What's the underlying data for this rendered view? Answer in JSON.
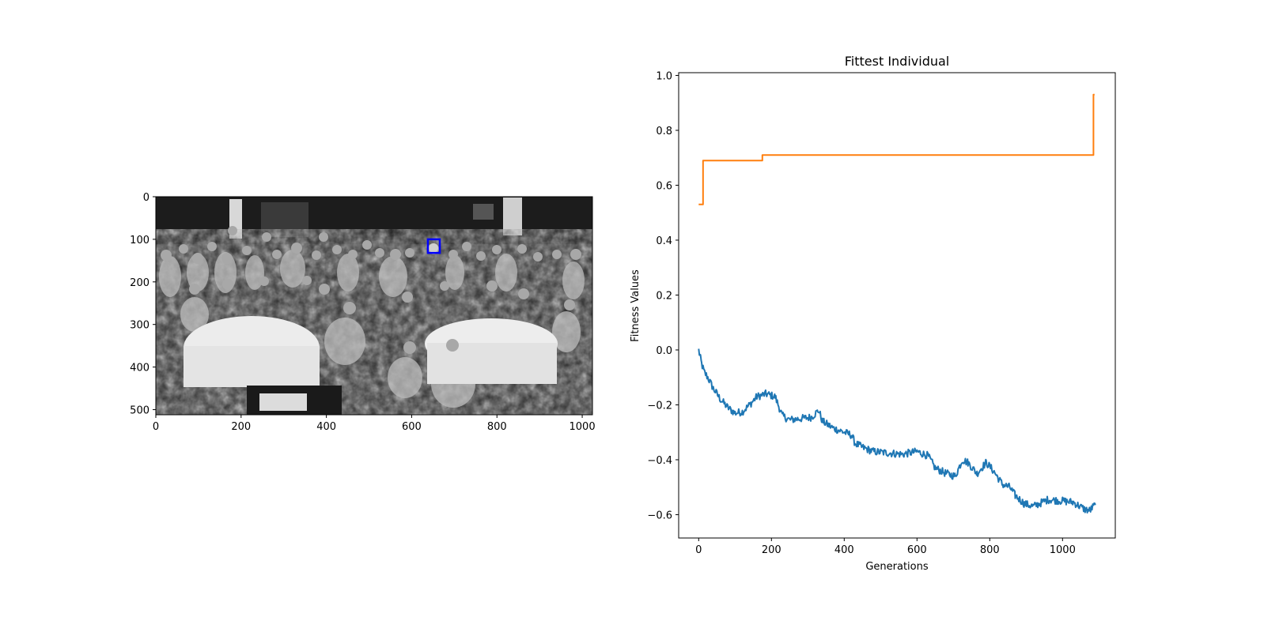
{
  "chart_data": [
    {
      "type": "image",
      "description": "grayscale group photo of a conference audience seated around round tables, with one face highlighted by a blue rectangle",
      "xlim": [
        0,
        1024
      ],
      "ylim": [
        0,
        512
      ],
      "y_inverted": true,
      "xticks": [
        0,
        200,
        400,
        600,
        800,
        1000
      ],
      "yticks": [
        0,
        100,
        200,
        300,
        400,
        500
      ],
      "highlight": {
        "x": [
          638,
          666
        ],
        "y": [
          100,
          132
        ],
        "color": "#0000ff"
      }
    },
    {
      "type": "line",
      "title": "Fittest Individual",
      "xlabel": "Generations",
      "ylabel": "Fitness Values",
      "xlim": [
        -55,
        1145
      ],
      "ylim": [
        -0.685,
        1.01
      ],
      "xticks": [
        0,
        200,
        400,
        600,
        800,
        1000
      ],
      "yticks": [
        -0.6,
        -0.4,
        -0.2,
        0.0,
        0.2,
        0.4,
        0.6,
        0.8,
        1.0
      ],
      "grid": false,
      "series": [
        {
          "color": "#1f77b4",
          "noise": 0.014,
          "points": [
            [
              0,
              0.0
            ],
            [
              3,
              -0.02
            ],
            [
              8,
              -0.05
            ],
            [
              15,
              -0.08
            ],
            [
              25,
              -0.1
            ],
            [
              40,
              -0.14
            ],
            [
              60,
              -0.18
            ],
            [
              80,
              -0.21
            ],
            [
              100,
              -0.23
            ],
            [
              120,
              -0.225
            ],
            [
              140,
              -0.2
            ],
            [
              160,
              -0.17
            ],
            [
              185,
              -0.16
            ],
            [
              210,
              -0.17
            ],
            [
              230,
              -0.24
            ],
            [
              250,
              -0.255
            ],
            [
              280,
              -0.25
            ],
            [
              310,
              -0.245
            ],
            [
              330,
              -0.22
            ],
            [
              340,
              -0.26
            ],
            [
              370,
              -0.285
            ],
            [
              400,
              -0.3
            ],
            [
              420,
              -0.31
            ],
            [
              430,
              -0.34
            ],
            [
              450,
              -0.355
            ],
            [
              480,
              -0.37
            ],
            [
              520,
              -0.375
            ],
            [
              560,
              -0.38
            ],
            [
              600,
              -0.37
            ],
            [
              630,
              -0.385
            ],
            [
              650,
              -0.43
            ],
            [
              680,
              -0.45
            ],
            [
              705,
              -0.46
            ],
            [
              725,
              -0.4
            ],
            [
              740,
              -0.41
            ],
            [
              765,
              -0.45
            ],
            [
              790,
              -0.41
            ],
            [
              810,
              -0.44
            ],
            [
              835,
              -0.49
            ],
            [
              855,
              -0.5
            ],
            [
              870,
              -0.53
            ],
            [
              895,
              -0.56
            ],
            [
              920,
              -0.57
            ],
            [
              960,
              -0.545
            ],
            [
              1000,
              -0.55
            ],
            [
              1030,
              -0.555
            ],
            [
              1060,
              -0.58
            ],
            [
              1075,
              -0.585
            ],
            [
              1085,
              -0.57
            ],
            [
              1090,
              -0.565
            ]
          ]
        },
        {
          "color": "#ff7f0e",
          "step": true,
          "points": [
            [
              0,
              0.53
            ],
            [
              12,
              0.53
            ],
            [
              12,
              0.69
            ],
            [
              175,
              0.69
            ],
            [
              175,
              0.71
            ],
            [
              1085,
              0.71
            ],
            [
              1085,
              0.93
            ],
            [
              1088,
              0.93
            ]
          ]
        }
      ]
    }
  ]
}
